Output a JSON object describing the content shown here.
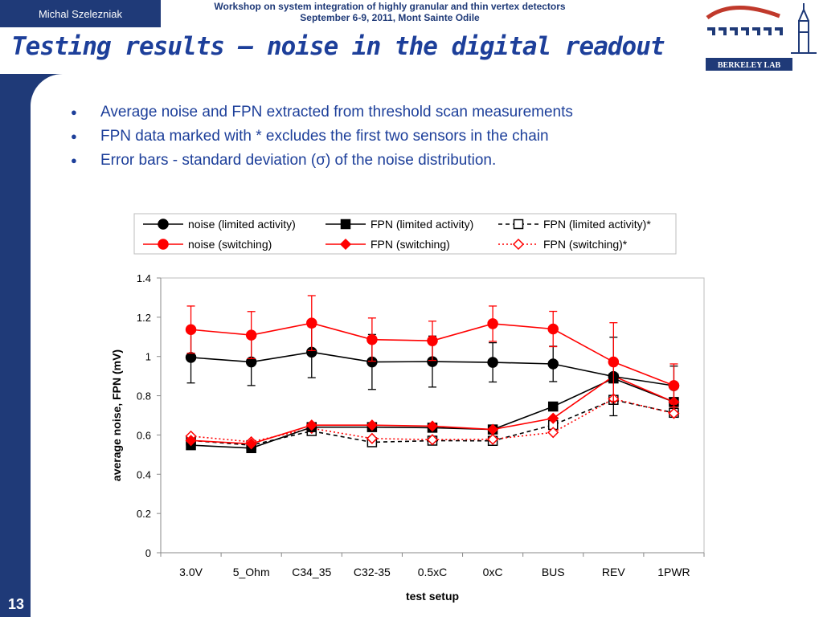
{
  "header": {
    "author": "Michal Szelezniak",
    "workshop_line1": "Workshop on system integration of highly granular and thin vertex detectors",
    "workshop_line2": "September 6-9, 2011, Mont Sainte Odile",
    "title": "Testing results – noise in the digital readout",
    "logo_text": "BERKELEY LAB"
  },
  "page_number": "13",
  "bullets": [
    "Average noise and FPN extracted from threshold scan measurements",
    "FPN data marked with * excludes the first two sensors in the chain",
    "Error bars -  standard deviation (σ) of the noise distribution."
  ],
  "colors": {
    "black": "#000000",
    "red": "#ff0000",
    "navy": "#1f3a78"
  },
  "chart_data": {
    "type": "line",
    "xlabel": "test setup",
    "ylabel": "average noise, FPN (mV)",
    "ylim": [
      0,
      1.4
    ],
    "yticks": [
      "0",
      "0.2",
      "0.4",
      "0.6",
      "0.8",
      "1",
      "1.2",
      "1.4"
    ],
    "grid": false,
    "legend_position": "top",
    "categories": [
      "3.0V",
      "5_Ohm",
      "C34_35",
      "C32-35",
      "0.5xC",
      "0xC",
      "BUS",
      "REV",
      "1PWR"
    ],
    "series": [
      {
        "name": "noise (limited activity)",
        "color": "#000000",
        "dash": "solid",
        "marker": "circle",
        "filled": true,
        "values": [
          0.995,
          0.972,
          1.022,
          0.972,
          0.974,
          0.97,
          0.962,
          0.898,
          0.851
        ],
        "error": [
          0.13,
          0.12,
          0.13,
          0.14,
          0.13,
          0.1,
          0.09,
          0.2,
          0.1
        ]
      },
      {
        "name": "FPN (limited activity)",
        "color": "#000000",
        "dash": "solid",
        "marker": "square",
        "filled": true,
        "values": [
          0.548,
          0.533,
          0.64,
          0.64,
          0.637,
          0.628,
          0.745,
          0.888,
          0.768
        ]
      },
      {
        "name": "FPN (limited activity)*",
        "color": "#000000",
        "dash": "dashed",
        "marker": "square",
        "filled": false,
        "values": [
          0.572,
          0.548,
          0.62,
          0.563,
          0.571,
          0.57,
          0.651,
          0.779,
          0.713
        ]
      },
      {
        "name": "noise (switching)",
        "color": "#ff0000",
        "dash": "solid",
        "marker": "circle",
        "filled": true,
        "values": [
          1.137,
          1.109,
          1.17,
          1.086,
          1.08,
          1.167,
          1.14,
          0.972,
          0.852
        ],
        "error": [
          0.12,
          0.12,
          0.14,
          0.11,
          0.1,
          0.09,
          0.09,
          0.2,
          0.11
        ]
      },
      {
        "name": "FPN (switching)",
        "color": "#ff0000",
        "dash": "solid",
        "marker": "diamond",
        "filled": true,
        "values": [
          0.572,
          0.555,
          0.65,
          0.65,
          0.645,
          0.628,
          0.685,
          0.9,
          0.768
        ]
      },
      {
        "name": "FPN (switching)*",
        "color": "#ff0000",
        "dash": "dotted",
        "marker": "diamond",
        "filled": false,
        "values": [
          0.594,
          0.565,
          0.634,
          0.582,
          0.576,
          0.578,
          0.613,
          0.784,
          0.71
        ]
      }
    ]
  }
}
